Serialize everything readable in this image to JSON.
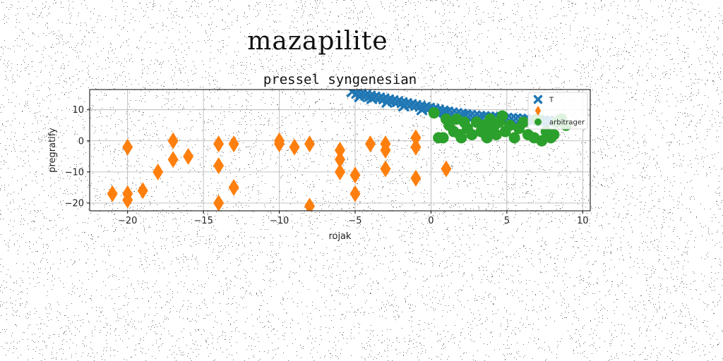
{
  "figure": {
    "suptitle": "mazapilite"
  },
  "chart_data": {
    "type": "scatter",
    "title": "pressel syngenesian",
    "xlabel": "rojak",
    "ylabel": "pregratify",
    "xlim": [
      -22.5,
      10.5
    ],
    "ylim": [
      -22.5,
      16.5
    ],
    "xticks": [
      -20,
      -15,
      -10,
      -5,
      0,
      5,
      10
    ],
    "xtick_labels": [
      "−20",
      "−15",
      "−10",
      "−5",
      "0",
      "5",
      "10"
    ],
    "yticks": [
      -20,
      -10,
      0,
      10
    ],
    "ytick_labels": [
      "−20",
      "−10",
      "0",
      "10"
    ],
    "grid": true,
    "legend_position": "top-right",
    "series": [
      {
        "name": "T",
        "marker": "x",
        "color": "#1f77b4",
        "points": [
          [
            -5.2,
            15.8
          ],
          [
            -4.9,
            15.3
          ],
          [
            -4.6,
            15.0
          ],
          [
            -4.3,
            14.7
          ],
          [
            -4.0,
            14.4
          ],
          [
            -3.7,
            14.1
          ],
          [
            -3.4,
            13.8
          ],
          [
            -3.1,
            13.5
          ],
          [
            -2.8,
            13.2
          ],
          [
            -2.5,
            12.9
          ],
          [
            -2.2,
            12.6
          ],
          [
            -1.9,
            12.3
          ],
          [
            -1.6,
            12.0
          ],
          [
            -1.3,
            11.7
          ],
          [
            -1.0,
            11.4
          ],
          [
            -0.7,
            11.1
          ],
          [
            -0.4,
            10.8
          ],
          [
            -0.1,
            10.5
          ],
          [
            0.2,
            10.2
          ],
          [
            0.5,
            9.9
          ],
          [
            0.8,
            9.6
          ],
          [
            1.1,
            9.3
          ],
          [
            1.4,
            9.0
          ],
          [
            1.7,
            8.8
          ],
          [
            2.0,
            8.6
          ],
          [
            2.3,
            8.4
          ],
          [
            2.6,
            8.2
          ],
          [
            2.9,
            8.0
          ],
          [
            3.2,
            7.9
          ],
          [
            3.5,
            7.8
          ],
          [
            3.8,
            7.7
          ],
          [
            4.1,
            7.6
          ],
          [
            4.4,
            7.5
          ],
          [
            4.7,
            7.4
          ],
          [
            5.0,
            7.3
          ],
          [
            5.3,
            7.2
          ],
          [
            5.6,
            7.1
          ],
          [
            5.9,
            7.0
          ],
          [
            6.2,
            6.9
          ],
          [
            6.5,
            6.8
          ],
          [
            6.8,
            6.7
          ],
          [
            7.1,
            6.6
          ],
          [
            7.4,
            6.5
          ],
          [
            7.7,
            6.4
          ],
          [
            8.0,
            6.3
          ],
          [
            8.3,
            6.2
          ],
          [
            -4.7,
            14.2
          ],
          [
            -3.9,
            13.6
          ],
          [
            -2.9,
            12.4
          ],
          [
            -1.8,
            11.2
          ],
          [
            -0.6,
            10.0
          ],
          [
            0.9,
            9.1
          ],
          [
            2.1,
            8.1
          ],
          [
            3.3,
            7.3
          ],
          [
            4.6,
            6.9
          ],
          [
            6.0,
            6.5
          ],
          [
            7.3,
            6.2
          ]
        ]
      },
      {
        "name": "",
        "marker": "diamond",
        "color": "#ff7f0e",
        "points": [
          [
            -21,
            -17
          ],
          [
            -20,
            -2
          ],
          [
            -20,
            -17
          ],
          [
            -20,
            -19
          ],
          [
            -19,
            -16
          ],
          [
            -18,
            -10
          ],
          [
            -17,
            0
          ],
          [
            -17,
            -6
          ],
          [
            -16,
            -5
          ],
          [
            -14,
            -1
          ],
          [
            -14,
            -8
          ],
          [
            -14,
            -20
          ],
          [
            -13,
            -1
          ],
          [
            -13,
            -15
          ],
          [
            -10,
            0
          ],
          [
            -10,
            -1
          ],
          [
            -9,
            -2
          ],
          [
            -8,
            -1
          ],
          [
            -8,
            -21
          ],
          [
            -6,
            -3
          ],
          [
            -6,
            -6
          ],
          [
            -6,
            -10
          ],
          [
            -5,
            -11
          ],
          [
            -5,
            -17
          ],
          [
            -4,
            -1
          ],
          [
            -3,
            -1
          ],
          [
            -3,
            -3
          ],
          [
            -3,
            -9
          ],
          [
            -1,
            1
          ],
          [
            -1,
            -2
          ],
          [
            -1,
            -12
          ],
          [
            1,
            -9
          ]
        ]
      },
      {
        "name": "arbitrager",
        "marker": "circle",
        "color": "#2ca02c",
        "points": [
          [
            0.2,
            9
          ],
          [
            0.5,
            1
          ],
          [
            0.8,
            1
          ],
          [
            1.0,
            7
          ],
          [
            1.2,
            5
          ],
          [
            1.5,
            3
          ],
          [
            1.7,
            7
          ],
          [
            1.9,
            2
          ],
          [
            2.2,
            6
          ],
          [
            2.4,
            4
          ],
          [
            2.7,
            2
          ],
          [
            3.0,
            6
          ],
          [
            3.3,
            3
          ],
          [
            3.5,
            5
          ],
          [
            3.7,
            1
          ],
          [
            3.9,
            7
          ],
          [
            4.1,
            4
          ],
          [
            4.3,
            2
          ],
          [
            4.5,
            6
          ],
          [
            4.7,
            8
          ],
          [
            4.9,
            3
          ],
          [
            5.2,
            5
          ],
          [
            5.5,
            1
          ],
          [
            5.8,
            4
          ],
          [
            6.1,
            6
          ],
          [
            6.4,
            2
          ],
          [
            6.8,
            1
          ],
          [
            7.0,
            7
          ],
          [
            7.3,
            0
          ],
          [
            7.6,
            3
          ],
          [
            7.9,
            1
          ],
          [
            8.1,
            2
          ],
          [
            8.3,
            6
          ],
          [
            8.6,
            7
          ],
          [
            8.9,
            5
          ],
          [
            3.6,
            2
          ],
          [
            4.2,
            5
          ],
          [
            2.0,
            1
          ]
        ]
      }
    ]
  }
}
